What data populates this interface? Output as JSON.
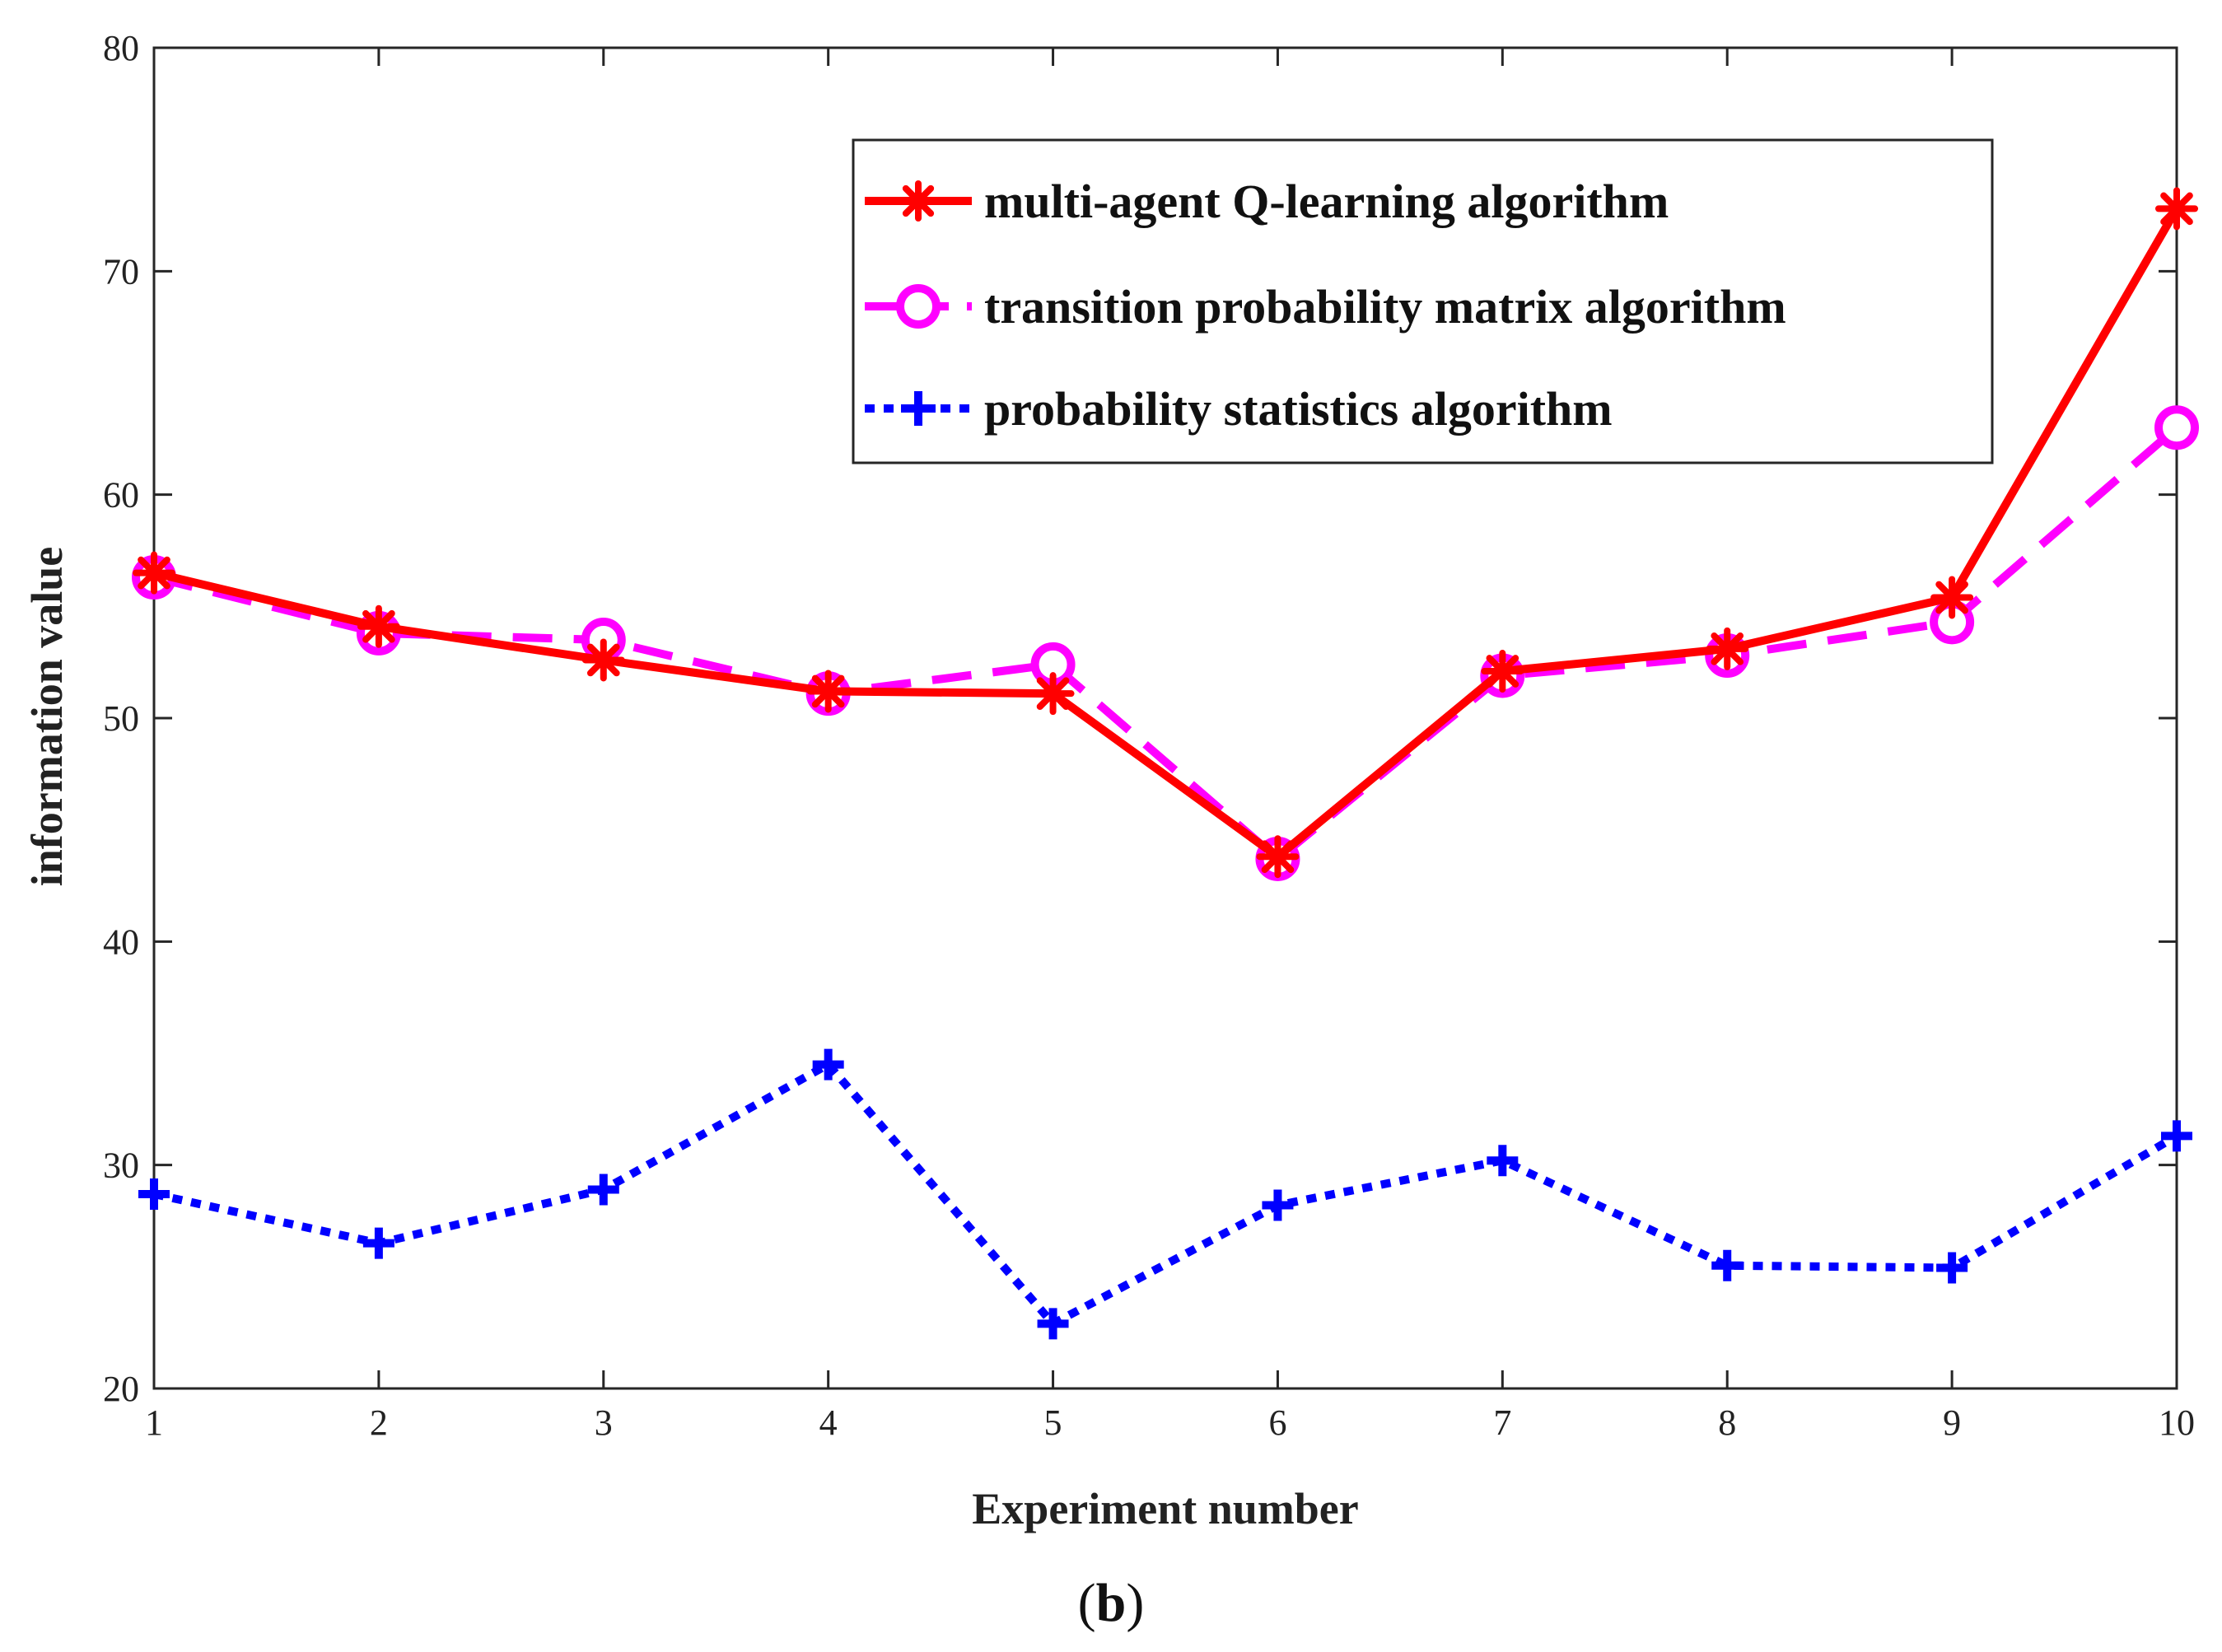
{
  "chart_data": {
    "type": "line",
    "title": "",
    "xlabel": "Experiment number",
    "ylabel": "information value",
    "xlim": [
      1,
      10
    ],
    "ylim": [
      20,
      80
    ],
    "xticks": [
      1,
      2,
      3,
      4,
      5,
      6,
      7,
      8,
      9,
      10
    ],
    "yticks": [
      20,
      30,
      40,
      50,
      60,
      70,
      80
    ],
    "grid": false,
    "legend_position": "top-right",
    "x": [
      1,
      2,
      3,
      4,
      5,
      6,
      7,
      8,
      9,
      10
    ],
    "series": [
      {
        "name": "multi-agent Q-learning algorithm",
        "color": "#ff0000",
        "line_style": "solid",
        "marker": "asterisk",
        "values": [
          56.5,
          54.1,
          52.6,
          51.2,
          51.1,
          43.8,
          52.1,
          53.1,
          55.4,
          72.8
        ]
      },
      {
        "name": "transition probability matrix algorithm",
        "color": "#ff00ff",
        "line_style": "dashed",
        "marker": "circle",
        "values": [
          56.3,
          53.8,
          53.5,
          51.1,
          52.4,
          43.7,
          51.9,
          52.8,
          54.3,
          63.0
        ]
      },
      {
        "name": "probability statistics algorithm",
        "color": "#0000ff",
        "line_style": "dotted",
        "marker": "plus",
        "values": [
          28.7,
          26.5,
          28.9,
          34.5,
          22.9,
          28.2,
          30.2,
          25.5,
          25.4,
          31.3
        ]
      }
    ]
  },
  "caption": {
    "open": "(",
    "label": "b",
    "close": ")"
  }
}
